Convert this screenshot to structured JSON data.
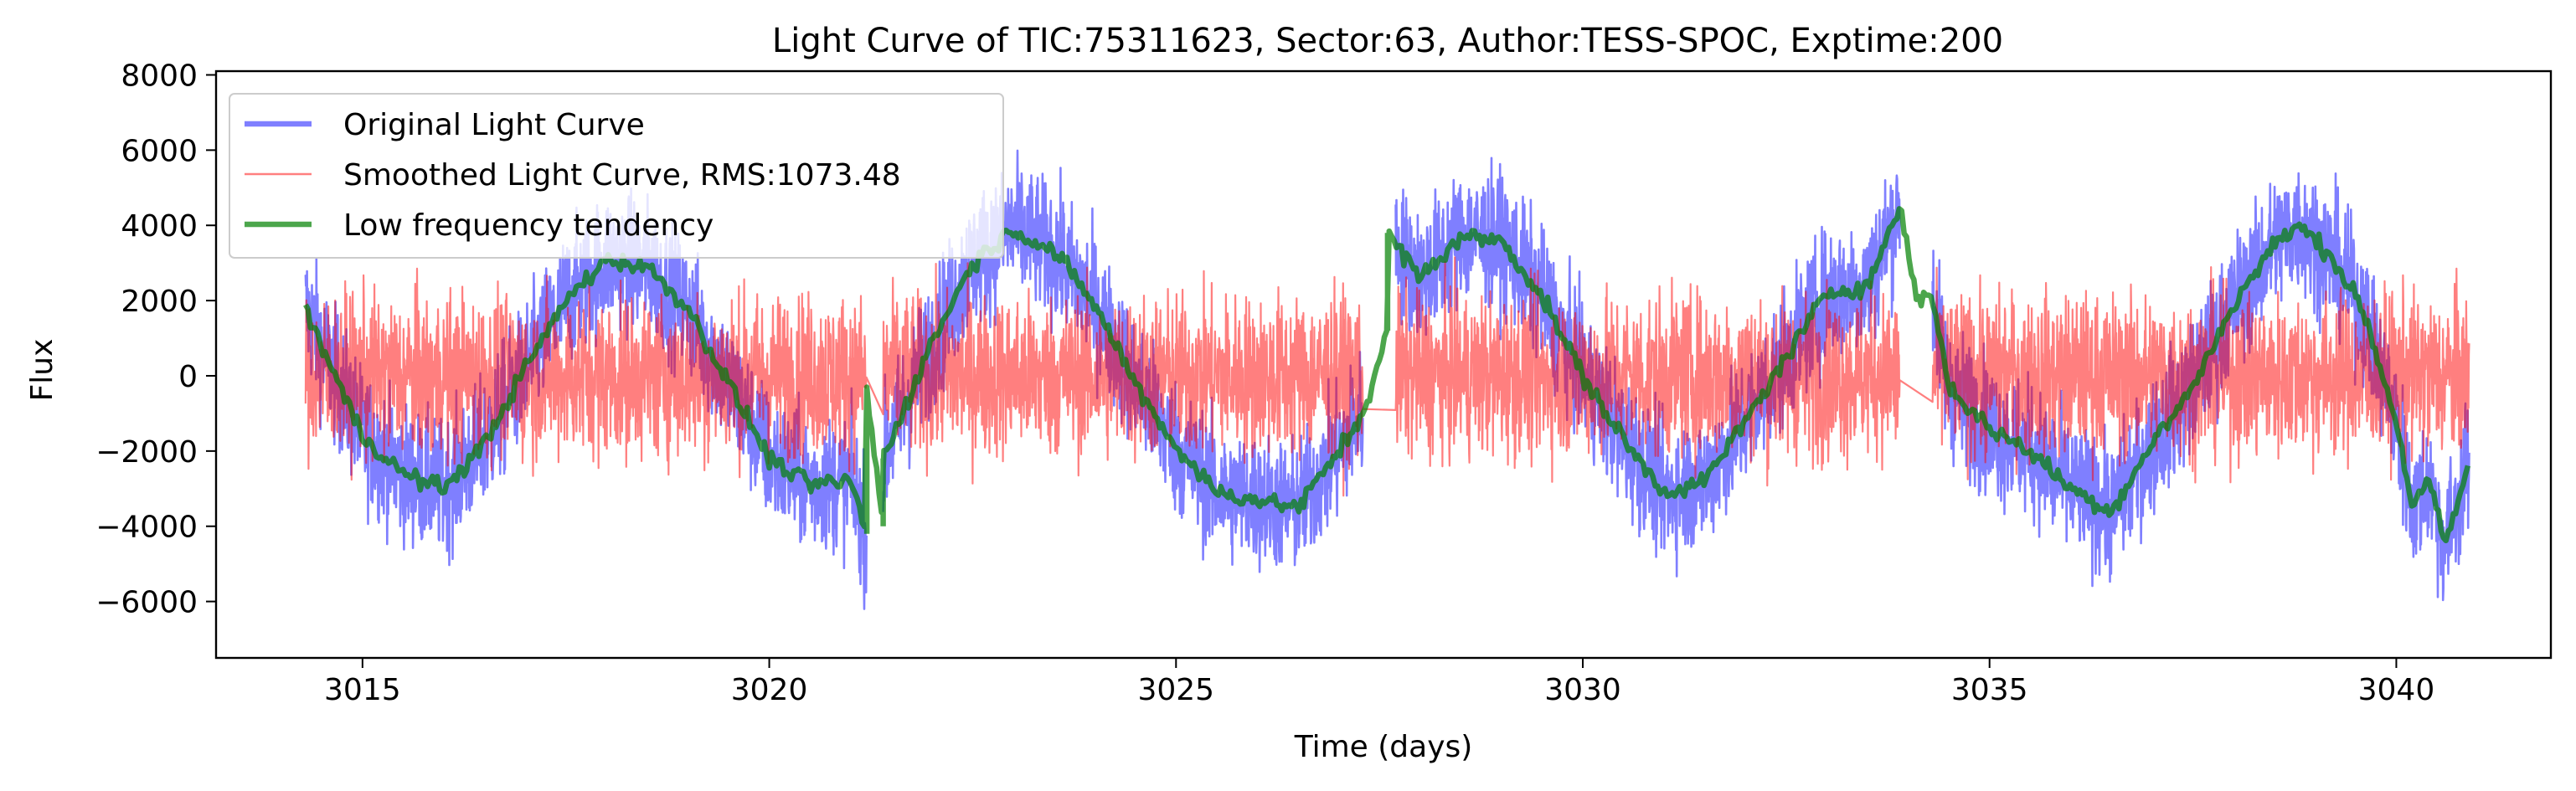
{
  "chart_data": {
    "type": "line",
    "title": "Light Curve of TIC:75311623, Sector:63, Author:TESS-SPOC, Exptime:200",
    "xlabel": "Time (days)",
    "ylabel": "Flux",
    "xlim": [
      3013.2,
      3041.9
    ],
    "ylim": [
      -7500,
      8100
    ],
    "x_ticks": [
      3015,
      3020,
      3025,
      3030,
      3035,
      3040
    ],
    "y_ticks": [
      -6000,
      -4000,
      -2000,
      0,
      2000,
      4000,
      6000,
      8000
    ],
    "grid": false,
    "legend_position": "top-left",
    "series": [
      {
        "name": "Original Light Curve",
        "color": "#0000ff",
        "opacity": 0.5,
        "segments": [
          [
            3014.3,
            3021.2
          ],
          [
            3021.4,
            3027.3
          ],
          [
            3027.7,
            3033.9
          ],
          [
            3034.3,
            3040.9
          ]
        ],
        "envelope": 2300,
        "min": -6700,
        "max": 7400
      },
      {
        "name": "Smoothed Light Curve, RMS:1073.48",
        "color": "#ff0000",
        "opacity": 0.5,
        "rms": 1073.48,
        "min": -4200,
        "max": 4200
      },
      {
        "name": "Low frequency tendency",
        "color": "#008000",
        "opacity": 0.7,
        "points": [
          [
            3014.3,
            1800
          ],
          [
            3014.6,
            300
          ],
          [
            3015.0,
            -1600
          ],
          [
            3015.5,
            -2600
          ],
          [
            3016.0,
            -3000
          ],
          [
            3016.5,
            -1800
          ],
          [
            3017.0,
            200
          ],
          [
            3017.5,
            2000
          ],
          [
            3018.0,
            3100
          ],
          [
            3018.5,
            2900
          ],
          [
            3019.0,
            1800
          ],
          [
            3019.5,
            -200
          ],
          [
            3020.0,
            -2200
          ],
          [
            3020.5,
            -2900
          ],
          [
            3021.0,
            -2800
          ],
          [
            3021.2,
            -4200
          ],
          [
            3021.2,
            -400
          ],
          [
            3021.4,
            -4000
          ],
          [
            3021.4,
            -2200
          ],
          [
            3022.0,
            900
          ],
          [
            3022.5,
            3000
          ],
          [
            3023.0,
            3900
          ],
          [
            3023.5,
            3300
          ],
          [
            3024.0,
            1900
          ],
          [
            3024.5,
            -200
          ],
          [
            3025.0,
            -1900
          ],
          [
            3025.5,
            -3100
          ],
          [
            3026.0,
            -3300
          ],
          [
            3026.5,
            -3500
          ],
          [
            3027.0,
            -2000
          ],
          [
            3027.3,
            -1000
          ],
          [
            3027.6,
            1200
          ],
          [
            3027.6,
            3800
          ],
          [
            3028.0,
            2600
          ],
          [
            3028.5,
            3700
          ],
          [
            3029.0,
            3600
          ],
          [
            3029.5,
            2100
          ],
          [
            3030.0,
            0
          ],
          [
            3030.5,
            -1700
          ],
          [
            3031.0,
            -3100
          ],
          [
            3031.5,
            -2800
          ],
          [
            3032.0,
            -1200
          ],
          [
            3032.5,
            500
          ],
          [
            3033.0,
            2200
          ],
          [
            3033.5,
            2400
          ],
          [
            3033.9,
            4500
          ],
          [
            3034.1,
            2100
          ],
          [
            3034.3,
            2100
          ],
          [
            3034.5,
            -300
          ],
          [
            3035.0,
            -1400
          ],
          [
            3035.5,
            -2000
          ],
          [
            3036.0,
            -3000
          ],
          [
            3036.5,
            -3600
          ],
          [
            3037.0,
            -1800
          ],
          [
            3037.5,
            -300
          ],
          [
            3038.0,
            1900
          ],
          [
            3038.5,
            3500
          ],
          [
            3038.8,
            4000
          ],
          [
            3039.2,
            3200
          ],
          [
            3039.6,
            1700
          ],
          [
            3040.0,
            -1200
          ],
          [
            3040.2,
            -3500
          ],
          [
            3040.4,
            -2800
          ],
          [
            3040.6,
            -4500
          ],
          [
            3040.9,
            -2300
          ]
        ]
      }
    ]
  }
}
